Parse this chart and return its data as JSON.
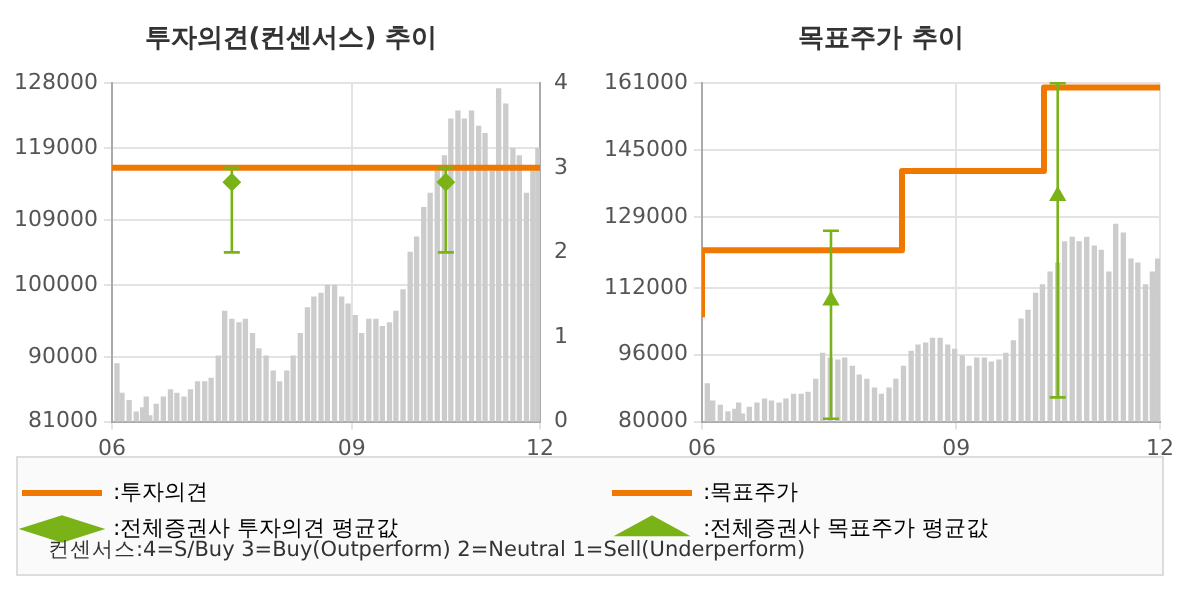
{
  "chart_data": [
    {
      "type": "bar",
      "title": "투자의견(컨센서스) 추이",
      "legend": "bottom",
      "grid": true,
      "xlim": [
        6,
        12
      ],
      "xticks": [
        {
          "value": 6,
          "label": "06"
        },
        {
          "value": 9.36,
          "label": "09"
        },
        {
          "value": 12,
          "label": "12"
        }
      ],
      "ylim": [
        81000,
        128000
      ],
      "yticks": [
        81000,
        90000,
        100000,
        109000,
        119000,
        128000
      ],
      "y2lim": [
        0,
        4
      ],
      "y2ticks": [
        0,
        1,
        2,
        3,
        4
      ],
      "annotations": [
        "컨센서스:4=S/Buy    3=Buy(Outperform)  2=Neutral    1=Sell(Underperform)"
      ],
      "series": [
        {
          "color": "#cccccc",
          "x": [
            6.07,
            6.14,
            6.24,
            6.34,
            6.43,
            6.48,
            6.53,
            6.62,
            6.72,
            6.82,
            6.91,
            7.01,
            7.1,
            7.2,
            7.3,
            7.39,
            7.49,
            7.58,
            7.68,
            7.78,
            7.87,
            7.97,
            8.06,
            8.16,
            8.26,
            8.35,
            8.45,
            8.54,
            8.64,
            8.74,
            8.83,
            8.93,
            9.02,
            9.12,
            9.22,
            9.31,
            9.41,
            9.5,
            9.6,
            9.7,
            9.79,
            9.89,
            9.98,
            10.08,
            10.18,
            10.27,
            10.37,
            10.46,
            10.56,
            10.66,
            10.75,
            10.85,
            10.94,
            11.04,
            11.14,
            11.23,
            11.33,
            11.42,
            11.52,
            11.62,
            11.71,
            11.81,
            11.9,
            11.97
          ],
          "values": [
            89000,
            84900,
            83900,
            82300,
            82900,
            84400,
            81800,
            83400,
            84400,
            85400,
            84900,
            84400,
            85400,
            86500,
            86500,
            87000,
            90100,
            96300,
            95200,
            94700,
            95200,
            93200,
            91100,
            90100,
            88000,
            86500,
            88000,
            90100,
            93200,
            96800,
            98300,
            98800,
            99900,
            99900,
            98300,
            97300,
            95700,
            93200,
            95200,
            95200,
            94200,
            94700,
            96300,
            99300,
            104500,
            106600,
            110700,
            112700,
            115800,
            117900,
            123000,
            124100,
            123000,
            124100,
            122000,
            121000,
            115800,
            127200,
            125100,
            118900,
            117900,
            112700,
            115800,
            118900
          ]
        },
        {
          "type": "line",
          "name": ":투자의견",
          "color": "#f07800",
          "axis": "y2",
          "marker": "none",
          "x": [
            6,
            12
          ],
          "values": [
            3,
            3
          ]
        },
        {
          "type": "scatter",
          "name": ":전체증권사 투자의견 평균값",
          "color": "#7ab317",
          "axis": "y2",
          "marker": "diamond",
          "x": [
            7.68,
            10.68
          ],
          "values": [
            2.83,
            2.83
          ],
          "errors": [
            [
              2,
              3
            ],
            [
              2,
              3
            ]
          ]
        }
      ]
    },
    {
      "type": "bar",
      "title": "목표주가 추이",
      "legend": "bottom",
      "grid": true,
      "xlim": [
        6,
        12
      ],
      "xticks": [
        {
          "value": 6,
          "label": "06"
        },
        {
          "value": 9.33,
          "label": "09"
        },
        {
          "value": 12,
          "label": "12"
        }
      ],
      "ylim": [
        80000,
        161000
      ],
      "yticks": [
        80000,
        96000,
        112000,
        129000,
        145000,
        161000
      ],
      "series": [
        {
          "color": "#cccccc",
          "x": [
            6.07,
            6.14,
            6.24,
            6.34,
            6.43,
            6.48,
            6.53,
            6.62,
            6.72,
            6.82,
            6.91,
            7.01,
            7.1,
            7.2,
            7.3,
            7.39,
            7.49,
            7.58,
            7.68,
            7.78,
            7.87,
            7.97,
            8.06,
            8.16,
            8.26,
            8.35,
            8.45,
            8.54,
            8.64,
            8.74,
            8.83,
            8.93,
            9.02,
            9.12,
            9.22,
            9.31,
            9.41,
            9.5,
            9.6,
            9.7,
            9.79,
            9.89,
            9.98,
            10.08,
            10.18,
            10.27,
            10.37,
            10.46,
            10.56,
            10.66,
            10.75,
            10.85,
            10.94,
            11.04,
            11.14,
            11.23,
            11.33,
            11.42,
            11.52,
            11.62,
            11.71,
            11.81,
            11.9,
            11.97
          ],
          "values": [
            89000,
            84900,
            83900,
            82300,
            82900,
            84400,
            81800,
            83400,
            84400,
            85400,
            84900,
            84400,
            85400,
            86500,
            86500,
            87000,
            90100,
            96300,
            95200,
            94700,
            95200,
            93200,
            91100,
            90100,
            88000,
            86500,
            88000,
            90100,
            93200,
            96800,
            98300,
            98800,
            99900,
            99900,
            98300,
            97300,
            95700,
            93200,
            95200,
            95200,
            94200,
            94700,
            96300,
            99300,
            104500,
            106600,
            110700,
            112700,
            115800,
            117900,
            123000,
            124100,
            123000,
            124100,
            122000,
            121000,
            115800,
            127200,
            125100,
            118900,
            117900,
            112700,
            115800,
            118900
          ]
        },
        {
          "type": "step",
          "name": ":목표주가",
          "color": "#f07800",
          "marker": "none",
          "x": [
            6,
            8.62,
            10.48,
            10.84,
            12
          ],
          "values": [
            105000,
            121000,
            140000,
            160000,
            160000
          ]
        },
        {
          "type": "scatter",
          "name": ":전체증권사 목표주가 평균값",
          "color": "#7ab317",
          "marker": "triangle",
          "x": [
            7.69,
            10.66
          ],
          "values": [
            109000,
            134000
          ],
          "errors": [
            [
              80700,
              125700
            ],
            [
              85800,
              161000
            ]
          ]
        }
      ]
    }
  ]
}
